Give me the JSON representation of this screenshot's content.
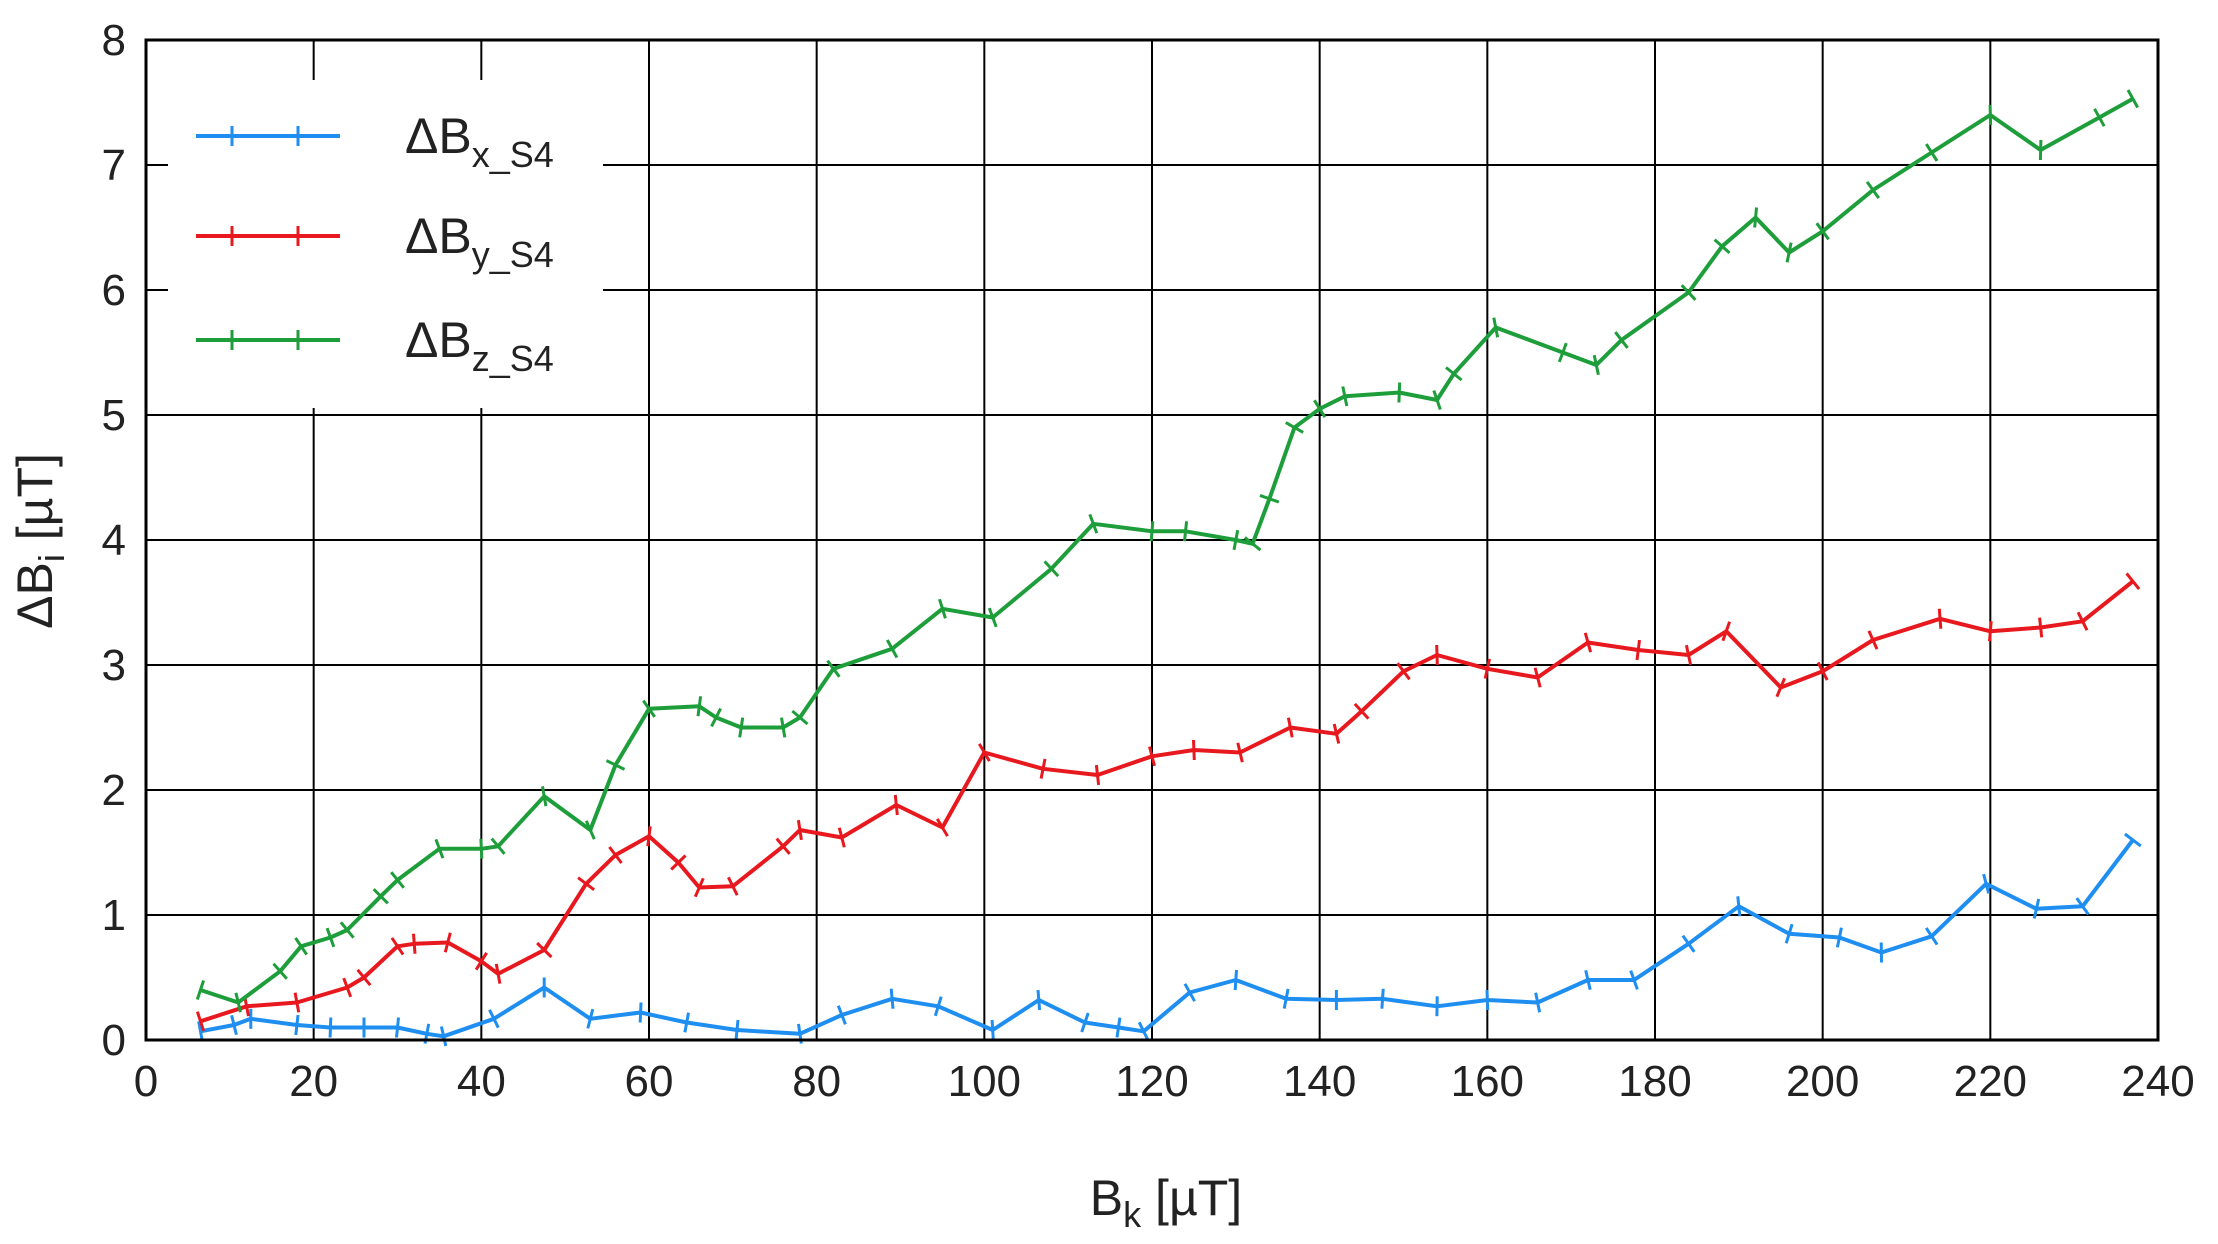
{
  "chart_data": {
    "type": "line",
    "xlabel": {
      "main": "B",
      "sub": "k",
      "unit": " [µT]"
    },
    "ylabel": {
      "main": "ΔB",
      "sub": "i",
      "unit": " [µT]"
    },
    "xlim": [
      0,
      240
    ],
    "ylim": [
      0,
      8
    ],
    "xticks": [
      0,
      20,
      40,
      60,
      80,
      100,
      120,
      140,
      160,
      180,
      200,
      220,
      240
    ],
    "yticks": [
      0,
      1,
      2,
      3,
      4,
      5,
      6,
      7,
      8
    ],
    "grid": true,
    "legend_position": "top-left",
    "series": [
      {
        "name": "ΔBx_S4",
        "name_main": "ΔB",
        "name_sub": "x_S4",
        "color": "#1f8ef1",
        "x": [
          6.5,
          10.5,
          12.5,
          18,
          22,
          26,
          30,
          33.5,
          35.5,
          41.5,
          47.5,
          53,
          59,
          64.5,
          70.5,
          78,
          83,
          89,
          94.5,
          101,
          106.5,
          112,
          116,
          119,
          124.5,
          130,
          136,
          142,
          147.5,
          154,
          160,
          166,
          172,
          177.5,
          184,
          190,
          196,
          202,
          207,
          213,
          219.5,
          225.5,
          231,
          237
        ],
        "y": [
          0.07,
          0.12,
          0.17,
          0.12,
          0.1,
          0.1,
          0.1,
          0.05,
          0.03,
          0.17,
          0.42,
          0.17,
          0.22,
          0.14,
          0.08,
          0.05,
          0.2,
          0.33,
          0.27,
          0.08,
          0.32,
          0.14,
          0.1,
          0.07,
          0.38,
          0.48,
          0.33,
          0.32,
          0.33,
          0.27,
          0.32,
          0.3,
          0.48,
          0.48,
          0.77,
          1.07,
          0.85,
          0.82,
          0.7,
          0.83,
          1.25,
          1.05,
          1.07,
          1.6
        ]
      },
      {
        "name": "ΔBy_S4",
        "name_main": "ΔB",
        "name_sub": "y_S4",
        "color": "#e8191e",
        "x": [
          6.5,
          12,
          18,
          24,
          26,
          30,
          32,
          36,
          40,
          42,
          47.5,
          52.5,
          56,
          60,
          63.5,
          66,
          70,
          76,
          78,
          83,
          89.5,
          95,
          100,
          107,
          113.5,
          120,
          125,
          130.5,
          136.5,
          142,
          145,
          150,
          154,
          160,
          166,
          172,
          178,
          184,
          188.5,
          195,
          200,
          206,
          214,
          220,
          226,
          231,
          237
        ],
        "y": [
          0.15,
          0.27,
          0.3,
          0.42,
          0.5,
          0.75,
          0.77,
          0.78,
          0.63,
          0.53,
          0.72,
          1.25,
          1.48,
          1.63,
          1.42,
          1.22,
          1.23,
          1.55,
          1.68,
          1.62,
          1.88,
          1.7,
          2.3,
          2.17,
          2.12,
          2.27,
          2.32,
          2.3,
          2.5,
          2.45,
          2.63,
          2.95,
          3.08,
          2.97,
          2.9,
          3.18,
          3.12,
          3.08,
          3.27,
          2.82,
          2.95,
          3.2,
          3.37,
          3.27,
          3.3,
          3.35,
          3.67
        ]
      },
      {
        "name": "ΔBz_S4",
        "name_main": "ΔB",
        "name_sub": "z_S4",
        "color": "#1e9e3a",
        "x": [
          6.5,
          11,
          16,
          18.5,
          22,
          24,
          28,
          30,
          35,
          40,
          42,
          47.5,
          53,
          56,
          60,
          66,
          68,
          71,
          76,
          78,
          82,
          89,
          95,
          101,
          108,
          113,
          120,
          124,
          130,
          132,
          134,
          137,
          140,
          143,
          149.5,
          154,
          156,
          161,
          169,
          173,
          176,
          184,
          188,
          192,
          196,
          200,
          206,
          213,
          220,
          226,
          233,
          237
        ],
        "y": [
          0.4,
          0.3,
          0.55,
          0.75,
          0.82,
          0.88,
          1.15,
          1.28,
          1.53,
          1.53,
          1.55,
          1.95,
          1.68,
          2.2,
          2.65,
          2.67,
          2.58,
          2.5,
          2.5,
          2.58,
          2.97,
          3.13,
          3.45,
          3.38,
          3.77,
          4.13,
          4.07,
          4.07,
          4.0,
          3.97,
          4.33,
          4.9,
          5.05,
          5.15,
          5.18,
          5.12,
          5.33,
          5.7,
          5.5,
          5.4,
          5.6,
          5.98,
          6.35,
          6.58,
          6.3,
          6.47,
          6.8,
          7.1,
          7.4,
          7.12,
          7.38,
          7.53
        ]
      }
    ]
  }
}
